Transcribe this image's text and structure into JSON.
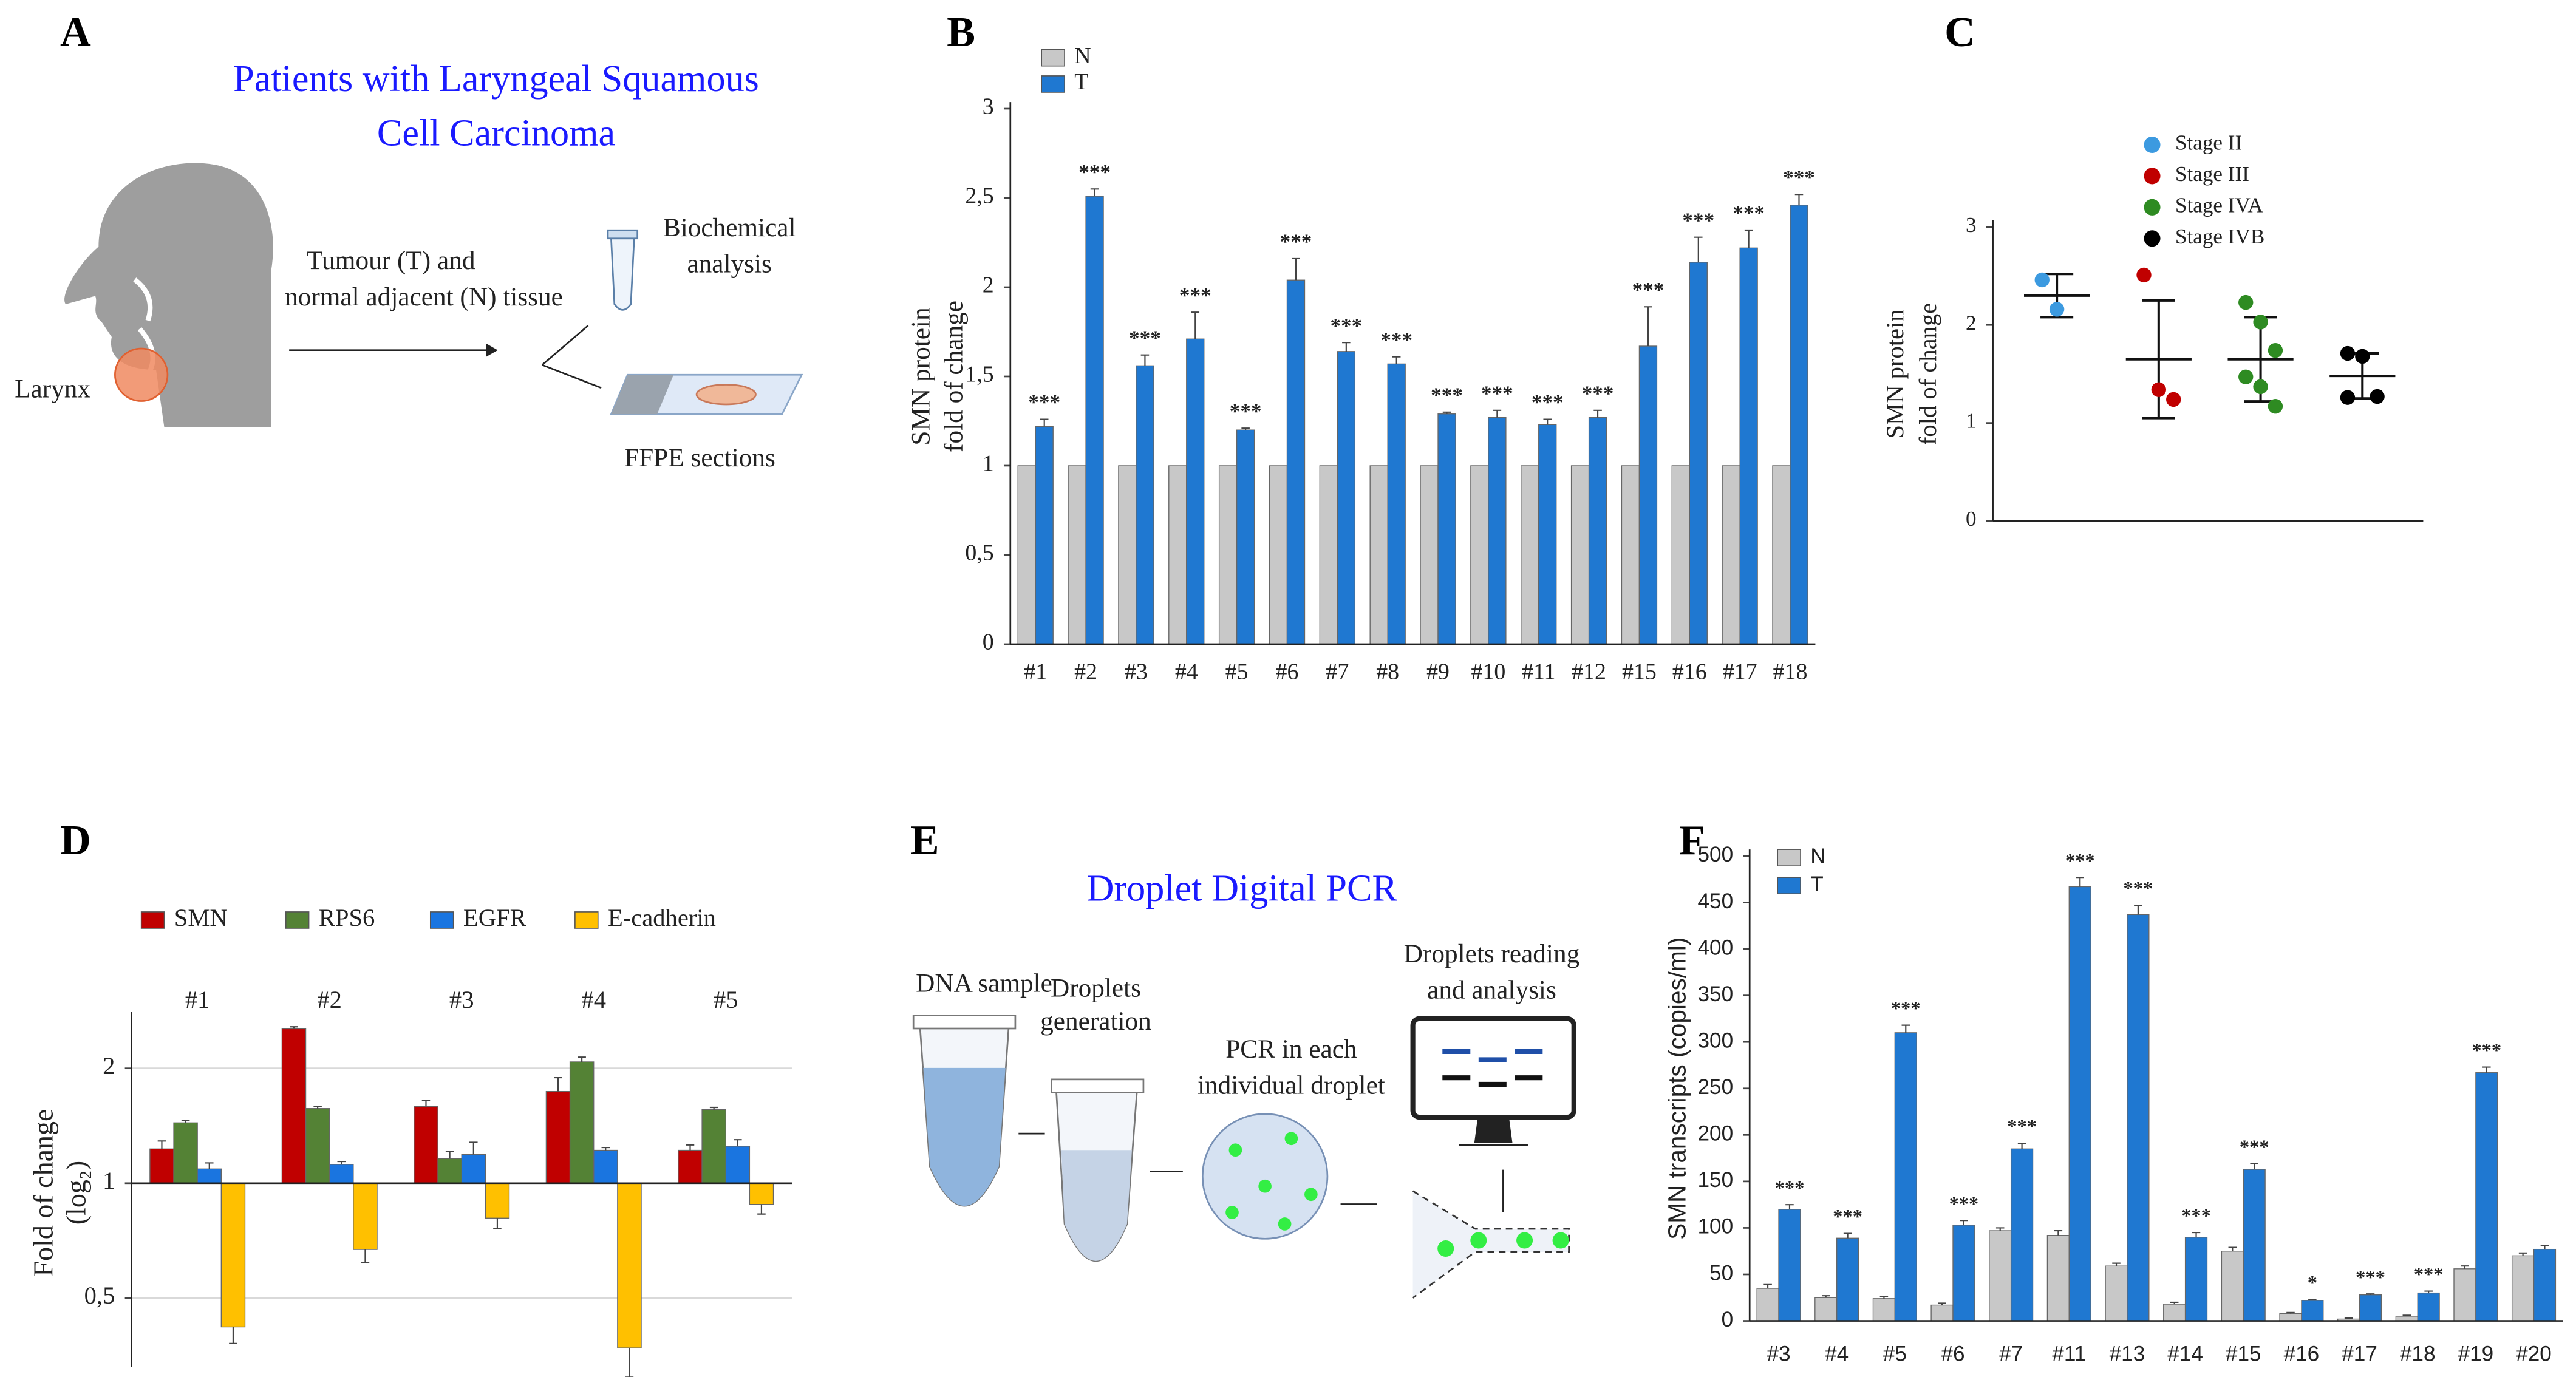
{
  "diagram_a": {
    "panel": "A",
    "title": [
      "Patients with Laryngeal Squamous",
      "Cell Carcinoma"
    ],
    "tissue_label": [
      "Tumour (T) and",
      "normal adjacent (N) tissue"
    ],
    "organ_label": "Larynx",
    "biochem_label": [
      "Biochemical",
      "analysis"
    ],
    "ffpe_label": "FFPE sections"
  },
  "diagram_e": {
    "panel": "E",
    "title": "Droplet Digital PCR",
    "steps": [
      [
        "DNA sample"
      ],
      [
        "Droplets",
        "generation"
      ],
      [
        "PCR in each",
        "individual droplet"
      ],
      [
        "Droplets reading",
        "and analysis"
      ]
    ]
  },
  "chart_data": [
    {
      "type": "bar",
      "panel": "B",
      "ylabel": [
        "SMN protein",
        "fold of change"
      ],
      "categories": [
        "#1",
        "#2",
        "#3",
        "#4",
        "#5",
        "#6",
        "#7",
        "#8",
        "#9",
        "#10",
        "#11",
        "#12",
        "#15",
        "#16",
        "#17",
        "#18"
      ],
      "series": [
        {
          "name": "N",
          "color": "#c8c8c8",
          "values": [
            1,
            1,
            1,
            1,
            1,
            1,
            1,
            1,
            1,
            1,
            1,
            1,
            1,
            1,
            1,
            1
          ]
        },
        {
          "name": "T",
          "color": "#1f78d1",
          "values": [
            1.22,
            2.51,
            1.56,
            1.71,
            1.2,
            2.04,
            1.64,
            1.57,
            1.29,
            1.27,
            1.23,
            1.27,
            1.67,
            2.14,
            2.22,
            2.46
          ],
          "errors": [
            0.04,
            0.04,
            0.06,
            0.15,
            0.01,
            0.12,
            0.05,
            0.04,
            0.01,
            0.04,
            0.03,
            0.04,
            0.22,
            0.14,
            0.1,
            0.06
          ]
        }
      ],
      "annotations": [
        "***",
        "***",
        "***",
        "***",
        "***",
        "***",
        "***",
        "***",
        "***",
        "***",
        "***",
        "***",
        "***",
        "***",
        "***",
        "***"
      ],
      "ylim": [
        0,
        3
      ],
      "yticks": [
        0,
        {
          "value": 0.5,
          "label": "0,5"
        },
        1,
        {
          "value": 1.5,
          "label": "1,5"
        },
        2,
        {
          "value": 2.5,
          "label": "2,5"
        },
        3
      ],
      "grid": false
    },
    {
      "type": "dot",
      "panel": "C",
      "ylabel": [
        "SMN protein",
        "fold of change"
      ],
      "series": [
        {
          "name": "Stage II",
          "color": "#3c9ae0",
          "values": [
            2.46,
            2.16
          ],
          "mean": 2.3,
          "sd": 0.22
        },
        {
          "name": "Stage III",
          "color": "#c00000",
          "values": [
            2.51,
            1.34,
            1.24
          ],
          "mean": 1.65,
          "sd": 0.6
        },
        {
          "name": "Stage IVA",
          "color": "#2e8b22",
          "values": [
            2.23,
            2.03,
            1.74,
            1.47,
            1.37,
            1.17
          ],
          "mean": 1.65,
          "sd": 0.43
        },
        {
          "name": "Stage IVB",
          "color": "#000000",
          "values": [
            1.71,
            1.68,
            1.27,
            1.26
          ],
          "mean": 1.48,
          "sd": 0.23
        }
      ],
      "ylim": [
        0,
        3
      ],
      "yticks": [
        0,
        1,
        2,
        3
      ],
      "grid": false
    },
    {
      "type": "bar",
      "panel": "D",
      "ylabel": [
        "Fold of change",
        "(log₂)"
      ],
      "yscale": "log",
      "categories": [
        "#1",
        "#2",
        "#3",
        "#4",
        "#5"
      ],
      "series": [
        {
          "name": "SMN",
          "color": "#c00000",
          "values": [
            1.23,
            2.54,
            1.59,
            1.74,
            1.22
          ],
          "errors": [
            0.06,
            0.03,
            0.06,
            0.15,
            0.04
          ]
        },
        {
          "name": "RPS6",
          "color": "#548235",
          "values": [
            1.44,
            1.57,
            1.16,
            2.08,
            1.56
          ],
          "errors": [
            0.02,
            0.02,
            0.05,
            0.06,
            0.02
          ]
        },
        {
          "name": "EGFR",
          "color": "#1a75e0",
          "values": [
            1.09,
            1.12,
            1.19,
            1.22,
            1.25
          ],
          "errors": [
            0.04,
            0.02,
            0.09,
            0.02,
            0.05
          ]
        },
        {
          "name": "E-cadherin",
          "color": "#ffc000",
          "values": [
            0.42,
            0.67,
            0.81,
            0.37,
            0.88
          ],
          "errors": [
            0.04,
            0.05,
            0.05,
            0.06,
            0.05
          ]
        }
      ],
      "ylim": [
        0.33,
        2.7
      ],
      "yticks": [
        {
          "value": 0.5,
          "label": "0,5"
        },
        1,
        2
      ],
      "grid": true
    },
    {
      "type": "bar",
      "panel": "F",
      "ylabel": [
        "SMN transcripts (copies/ml)"
      ],
      "categories": [
        "#3",
        "#4",
        "#5",
        "#6",
        "#7",
        "#11",
        "#13",
        "#14",
        "#15",
        "#16",
        "#17",
        "#18",
        "#19",
        "#20"
      ],
      "series": [
        {
          "name": "N",
          "color": "#c8c8c8",
          "values": [
            35,
            25,
            24,
            17,
            97,
            92,
            59,
            18,
            75,
            8,
            2,
            5,
            56,
            70
          ],
          "errors": [
            4,
            2,
            2,
            2,
            3,
            5,
            3,
            2,
            4,
            1,
            1,
            1,
            3,
            3
          ]
        },
        {
          "name": "T",
          "color": "#1f78d1",
          "values": [
            120,
            89,
            310,
            103,
            185,
            467,
            437,
            90,
            163,
            22,
            28,
            30,
            267,
            77
          ],
          "errors": [
            5,
            5,
            8,
            5,
            6,
            10,
            10,
            5,
            6,
            1,
            1,
            2,
            6,
            4
          ]
        }
      ],
      "annotations": [
        "***",
        "***",
        "***",
        "***",
        "***",
        "***",
        "***",
        "***",
        "***",
        "*",
        "***",
        "***",
        "***",
        null
      ],
      "ylim": [
        0,
        500
      ],
      "yticks": [
        0,
        50,
        100,
        150,
        200,
        250,
        300,
        350,
        400,
        450,
        500
      ],
      "grid": false
    }
  ]
}
